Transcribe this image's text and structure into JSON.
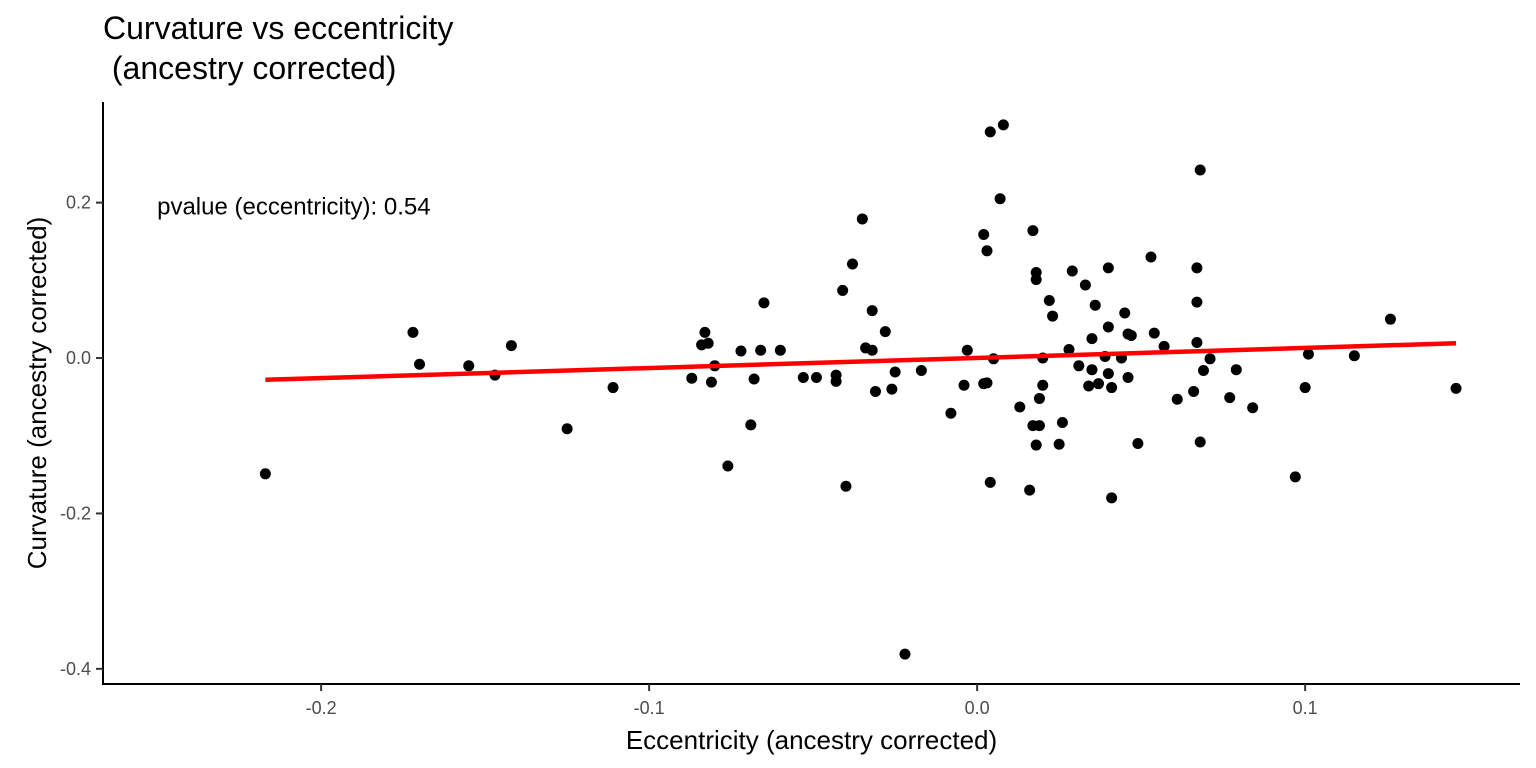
{
  "chart_data": {
    "type": "scatter",
    "title_line1": "Curvature vs eccentricity",
    "title_line2": " (ancestry corrected)",
    "xlabel": "Eccentricity (ancestry corrected)",
    "ylabel": "Curvature (ancestry corrected)",
    "xlim": [
      -0.2665,
      0.1655
    ],
    "ylim": [
      -0.4195,
      0.3295
    ],
    "x_ticks": [
      -0.2,
      -0.1,
      0.0,
      0.1
    ],
    "x_tick_labels": [
      "-0.2",
      "-0.1",
      "0.0",
      "0.1"
    ],
    "y_ticks": [
      -0.4,
      -0.2,
      0.0,
      0.2
    ],
    "y_tick_labels": [
      "-0.4",
      "-0.2",
      "0.0",
      "0.2"
    ],
    "grid": false,
    "annotation": "pvalue (eccentricity): 0.54",
    "annotation_at": {
      "x": -0.25,
      "y": 0.195
    },
    "point_color": "#000000",
    "line_color": "#ff0000",
    "fit_line": {
      "x": [
        -0.217,
        0.146
      ],
      "y": [
        -0.028,
        0.019
      ]
    },
    "points": [
      {
        "x": -0.217,
        "y": -0.149
      },
      {
        "x": -0.172,
        "y": 0.033
      },
      {
        "x": -0.17,
        "y": -0.008
      },
      {
        "x": -0.155,
        "y": -0.01
      },
      {
        "x": -0.147,
        "y": -0.022
      },
      {
        "x": -0.142,
        "y": 0.016
      },
      {
        "x": -0.125,
        "y": -0.091
      },
      {
        "x": -0.111,
        "y": -0.038
      },
      {
        "x": -0.087,
        "y": -0.026
      },
      {
        "x": -0.084,
        "y": 0.017
      },
      {
        "x": -0.083,
        "y": 0.033
      },
      {
        "x": -0.082,
        "y": 0.019
      },
      {
        "x": -0.081,
        "y": -0.031
      },
      {
        "x": -0.08,
        "y": -0.01
      },
      {
        "x": -0.076,
        "y": -0.139
      },
      {
        "x": -0.072,
        "y": 0.009
      },
      {
        "x": -0.069,
        "y": -0.086
      },
      {
        "x": -0.068,
        "y": -0.027
      },
      {
        "x": -0.066,
        "y": 0.01
      },
      {
        "x": -0.065,
        "y": 0.071
      },
      {
        "x": -0.06,
        "y": 0.01
      },
      {
        "x": -0.053,
        "y": -0.025
      },
      {
        "x": -0.049,
        "y": -0.025
      },
      {
        "x": -0.043,
        "y": -0.022
      },
      {
        "x": -0.043,
        "y": -0.03
      },
      {
        "x": -0.041,
        "y": 0.087
      },
      {
        "x": -0.04,
        "y": -0.165
      },
      {
        "x": -0.038,
        "y": 0.121
      },
      {
        "x": -0.035,
        "y": 0.179
      },
      {
        "x": -0.034,
        "y": 0.013
      },
      {
        "x": -0.032,
        "y": 0.01
      },
      {
        "x": -0.032,
        "y": 0.061
      },
      {
        "x": -0.031,
        "y": -0.043
      },
      {
        "x": -0.028,
        "y": 0.034
      },
      {
        "x": -0.026,
        "y": -0.04
      },
      {
        "x": -0.025,
        "y": -0.018
      },
      {
        "x": -0.022,
        "y": -0.381
      },
      {
        "x": -0.017,
        "y": -0.016
      },
      {
        "x": -0.008,
        "y": -0.071
      },
      {
        "x": -0.004,
        "y": -0.035
      },
      {
        "x": -0.003,
        "y": 0.01
      },
      {
        "x": 0.002,
        "y": 0.159
      },
      {
        "x": 0.002,
        "y": -0.033
      },
      {
        "x": 0.003,
        "y": 0.138
      },
      {
        "x": 0.003,
        "y": -0.032
      },
      {
        "x": 0.004,
        "y": 0.291
      },
      {
        "x": 0.004,
        "y": -0.16
      },
      {
        "x": 0.005,
        "y": -0.001
      },
      {
        "x": 0.007,
        "y": 0.205
      },
      {
        "x": 0.008,
        "y": 0.3
      },
      {
        "x": 0.013,
        "y": -0.063
      },
      {
        "x": 0.016,
        "y": -0.17
      },
      {
        "x": 0.017,
        "y": 0.164
      },
      {
        "x": 0.017,
        "y": -0.087
      },
      {
        "x": 0.018,
        "y": 0.11
      },
      {
        "x": 0.018,
        "y": 0.101
      },
      {
        "x": 0.018,
        "y": -0.112
      },
      {
        "x": 0.019,
        "y": -0.052
      },
      {
        "x": 0.019,
        "y": -0.087
      },
      {
        "x": 0.02,
        "y": 0.0
      },
      {
        "x": 0.02,
        "y": -0.035
      },
      {
        "x": 0.022,
        "y": 0.074
      },
      {
        "x": 0.023,
        "y": 0.054
      },
      {
        "x": 0.025,
        "y": -0.111
      },
      {
        "x": 0.026,
        "y": -0.083
      },
      {
        "x": 0.028,
        "y": 0.011
      },
      {
        "x": 0.029,
        "y": 0.112
      },
      {
        "x": 0.031,
        "y": -0.01
      },
      {
        "x": 0.033,
        "y": 0.094
      },
      {
        "x": 0.034,
        "y": -0.036
      },
      {
        "x": 0.035,
        "y": 0.025
      },
      {
        "x": 0.035,
        "y": -0.015
      },
      {
        "x": 0.036,
        "y": 0.068
      },
      {
        "x": 0.037,
        "y": -0.033
      },
      {
        "x": 0.039,
        "y": 0.002
      },
      {
        "x": 0.04,
        "y": 0.04
      },
      {
        "x": 0.04,
        "y": 0.116
      },
      {
        "x": 0.04,
        "y": -0.02
      },
      {
        "x": 0.041,
        "y": -0.038
      },
      {
        "x": 0.041,
        "y": -0.18
      },
      {
        "x": 0.044,
        "y": 0.0
      },
      {
        "x": 0.045,
        "y": 0.058
      },
      {
        "x": 0.046,
        "y": -0.025
      },
      {
        "x": 0.046,
        "y": 0.031
      },
      {
        "x": 0.047,
        "y": 0.029
      },
      {
        "x": 0.049,
        "y": -0.11
      },
      {
        "x": 0.053,
        "y": 0.13
      },
      {
        "x": 0.054,
        "y": 0.032
      },
      {
        "x": 0.057,
        "y": 0.015
      },
      {
        "x": 0.061,
        "y": -0.053
      },
      {
        "x": 0.066,
        "y": -0.043
      },
      {
        "x": 0.067,
        "y": 0.02
      },
      {
        "x": 0.067,
        "y": 0.116
      },
      {
        "x": 0.067,
        "y": 0.072
      },
      {
        "x": 0.068,
        "y": 0.242
      },
      {
        "x": 0.068,
        "y": -0.108
      },
      {
        "x": 0.069,
        "y": -0.016
      },
      {
        "x": 0.071,
        "y": -0.001
      },
      {
        "x": 0.077,
        "y": -0.051
      },
      {
        "x": 0.079,
        "y": -0.015
      },
      {
        "x": 0.084,
        "y": -0.064
      },
      {
        "x": 0.097,
        "y": -0.153
      },
      {
        "x": 0.1,
        "y": -0.038
      },
      {
        "x": 0.101,
        "y": 0.005
      },
      {
        "x": 0.115,
        "y": 0.003
      },
      {
        "x": 0.126,
        "y": 0.05
      },
      {
        "x": 0.146,
        "y": -0.039
      }
    ]
  }
}
